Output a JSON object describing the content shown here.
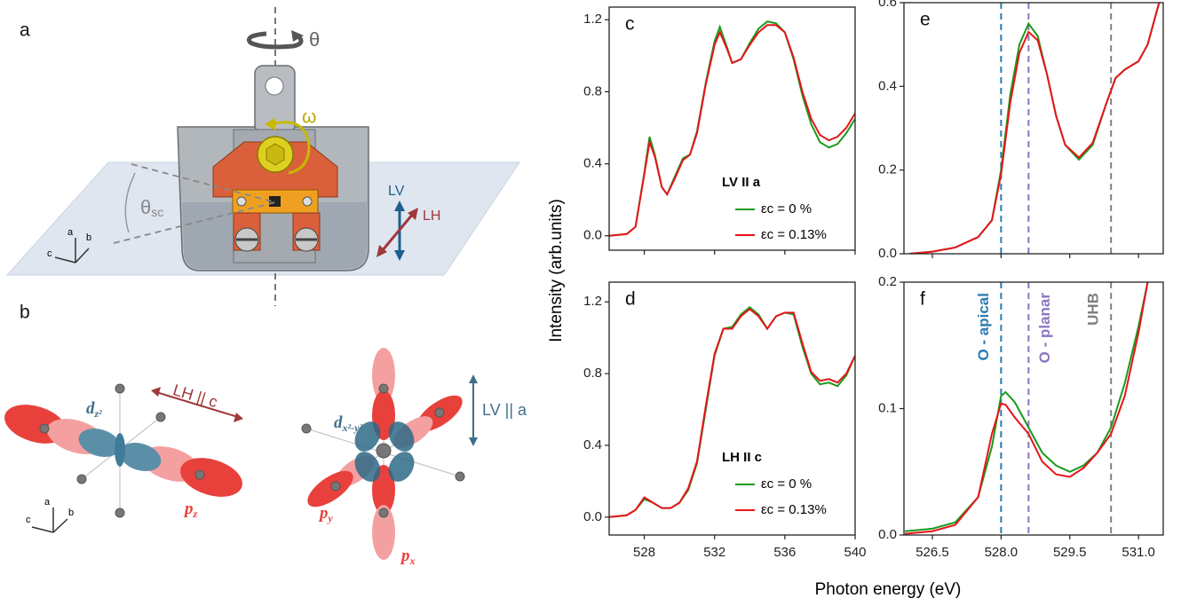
{
  "schematic": {
    "panel_a": "a",
    "panel_b": "b",
    "theta": "θ",
    "omega": "ω",
    "theta_sc": {
      "base": "θ",
      "sub": "sc"
    },
    "lv": "LV",
    "lh": "LH",
    "axes_a": [
      "a",
      "b",
      "c"
    ],
    "axes_b": [
      "a",
      "b",
      "c"
    ],
    "dz2": {
      "base": "d",
      "sub": "z²"
    },
    "pz": {
      "base": "p",
      "sub": "z"
    },
    "lh_c": "LH || c",
    "dx2y2": {
      "base": "d",
      "sub": "x²-y²"
    },
    "lv_a": "LV || a",
    "py": {
      "base": "p",
      "sub": "y"
    },
    "px": {
      "base": "p",
      "sub": "x"
    }
  },
  "axis_labels": {
    "ylabel": "Intensity (arb.units)",
    "xlabel": "Photon energy (eV)"
  },
  "chart_data": [
    {
      "type": "line",
      "label": "c",
      "legend_title": "LV II a",
      "xtick_labels": false,
      "xlim": [
        526,
        540
      ],
      "xticks": [
        528,
        532,
        536,
        540
      ],
      "ylim": [
        -0.08,
        1.27
      ],
      "yticks": [
        {
          "value": 0,
          "label": "0.0"
        },
        0.4,
        0.8,
        1.2
      ],
      "x": [
        526,
        527,
        527.5,
        528,
        528.3,
        528.6,
        529,
        529.3,
        529.7,
        530.2,
        530.6,
        531,
        531.5,
        532,
        532.3,
        532.7,
        533,
        533.5,
        534,
        534.5,
        535,
        535.5,
        536,
        536.5,
        537,
        537.5,
        538,
        538.5,
        539,
        539.5,
        540
      ],
      "series": [
        {
          "name": "εc = 0 %",
          "color": "#1a9a1a",
          "values": [
            0,
            0.01,
            0.05,
            0.35,
            0.55,
            0.45,
            0.27,
            0.23,
            0.32,
            0.43,
            0.45,
            0.58,
            0.85,
            1.08,
            1.16,
            1.05,
            0.96,
            0.98,
            1.07,
            1.15,
            1.19,
            1.18,
            1.13,
            0.98,
            0.78,
            0.62,
            0.52,
            0.49,
            0.51,
            0.57,
            0.65
          ]
        },
        {
          "name": "εc = 0.13%",
          "color": "#e8141b",
          "values": [
            0,
            0.01,
            0.05,
            0.34,
            0.52,
            0.44,
            0.27,
            0.23,
            0.31,
            0.42,
            0.45,
            0.57,
            0.84,
            1.06,
            1.13,
            1.04,
            0.96,
            0.98,
            1.06,
            1.13,
            1.17,
            1.17,
            1.13,
            0.99,
            0.8,
            0.65,
            0.56,
            0.53,
            0.55,
            0.6,
            0.68
          ]
        }
      ]
    },
    {
      "type": "line",
      "label": "d",
      "legend_title": "LH II c",
      "xtick_labels": true,
      "xlim": [
        526,
        540
      ],
      "xticks": [
        528,
        532,
        536,
        540
      ],
      "ylim": [
        -0.1,
        1.31
      ],
      "yticks": [
        {
          "value": 0,
          "label": "0.0"
        },
        0.4,
        0.8,
        1.2
      ],
      "x": [
        526,
        527,
        527.5,
        528,
        528.5,
        529,
        529.5,
        530,
        530.5,
        531,
        531.5,
        532,
        532.5,
        533,
        533.5,
        534,
        534.5,
        535,
        535.5,
        536,
        536.5,
        537,
        537.5,
        538,
        538.5,
        539,
        539.5,
        540
      ],
      "series": [
        {
          "name": "εc = 0 %",
          "color": "#1a9a1a",
          "values": [
            0,
            0.01,
            0.04,
            0.1,
            0.08,
            0.05,
            0.05,
            0.08,
            0.15,
            0.3,
            0.6,
            0.9,
            1.05,
            1.06,
            1.13,
            1.17,
            1.13,
            1.05,
            1.12,
            1.14,
            1.13,
            0.95,
            0.8,
            0.74,
            0.75,
            0.73,
            0.79,
            0.9
          ]
        },
        {
          "name": "εc = 0.13%",
          "color": "#e8141b",
          "values": [
            0,
            0.01,
            0.04,
            0.11,
            0.08,
            0.05,
            0.05,
            0.08,
            0.16,
            0.31,
            0.62,
            0.91,
            1.05,
            1.05,
            1.12,
            1.16,
            1.12,
            1.05,
            1.12,
            1.14,
            1.14,
            0.97,
            0.81,
            0.76,
            0.77,
            0.75,
            0.8,
            0.9
          ]
        }
      ]
    },
    {
      "type": "line",
      "label": "e",
      "xtick_labels": false,
      "xlim": [
        525.88,
        531.54
      ],
      "xticks": [
        526.5,
        528,
        529.5,
        531
      ],
      "ylim": [
        0,
        0.6
      ],
      "yticks": [
        {
          "value": 0,
          "label": "0.0"
        },
        0.2,
        0.4,
        0.6
      ],
      "vlines": [
        {
          "x": 528,
          "color": "#2b7bb0"
        },
        {
          "x": 528.6,
          "color": "#8b77c2"
        },
        {
          "x": 530.4,
          "color": "#808080"
        }
      ],
      "x": [
        526,
        526.5,
        527,
        527.5,
        527.8,
        528,
        528.2,
        528.4,
        528.6,
        528.8,
        529,
        529.2,
        529.4,
        529.7,
        530,
        530.3,
        530.5,
        530.7,
        531,
        531.2,
        531.4,
        531.5
      ],
      "series": [
        {
          "name": "εc = 0 %",
          "color": "#1a9a1a",
          "values": [
            0,
            0.005,
            0.015,
            0.04,
            0.08,
            0.2,
            0.38,
            0.5,
            0.55,
            0.52,
            0.43,
            0.33,
            0.26,
            0.225,
            0.26,
            0.36,
            0.42,
            0.44,
            0.46,
            0.5,
            0.58,
            0.62
          ]
        },
        {
          "name": "εc = 0.13%",
          "color": "#e8141b",
          "values": [
            0,
            0.005,
            0.015,
            0.04,
            0.08,
            0.19,
            0.36,
            0.48,
            0.53,
            0.51,
            0.43,
            0.33,
            0.26,
            0.23,
            0.265,
            0.36,
            0.42,
            0.44,
            0.46,
            0.5,
            0.58,
            0.62
          ]
        }
      ]
    },
    {
      "type": "line",
      "label": "f",
      "xtick_labels": true,
      "xlim": [
        525.88,
        531.54
      ],
      "xticks": [
        526.5,
        {
          "value": 528,
          "label": "528.0"
        },
        529.5,
        {
          "value": 531,
          "label": "531.0"
        }
      ],
      "ylim": [
        0,
        0.2
      ],
      "yticks": [
        {
          "value": 0,
          "label": "0.0"
        },
        0.1,
        0.2
      ],
      "vlines": [
        {
          "x": 528,
          "color": "#2b7bb0",
          "label": "O - apical"
        },
        {
          "x": 528.6,
          "color": "#8b77c2",
          "label": "O - planar"
        },
        {
          "x": 530.4,
          "color": "#808080",
          "label": "UHB"
        }
      ],
      "x": [
        525.9,
        526.5,
        527,
        527.5,
        527.8,
        528,
        528.1,
        528.3,
        528.6,
        528.9,
        529.2,
        529.5,
        529.8,
        530.1,
        530.4,
        530.7,
        531,
        531.2
      ],
      "series": [
        {
          "name": "εc = 0 %",
          "color": "#1a9a1a",
          "values": [
            0.003,
            0.005,
            0.01,
            0.03,
            0.07,
            0.11,
            0.113,
            0.105,
            0.085,
            0.065,
            0.055,
            0.05,
            0.055,
            0.065,
            0.085,
            0.12,
            0.165,
            0.2
          ]
        },
        {
          "name": "εc = 0.13%",
          "color": "#e8141b",
          "values": [
            0.001,
            0.003,
            0.008,
            0.03,
            0.08,
            0.104,
            0.103,
            0.093,
            0.08,
            0.058,
            0.048,
            0.046,
            0.053,
            0.065,
            0.08,
            0.11,
            0.16,
            0.2
          ]
        }
      ]
    }
  ]
}
